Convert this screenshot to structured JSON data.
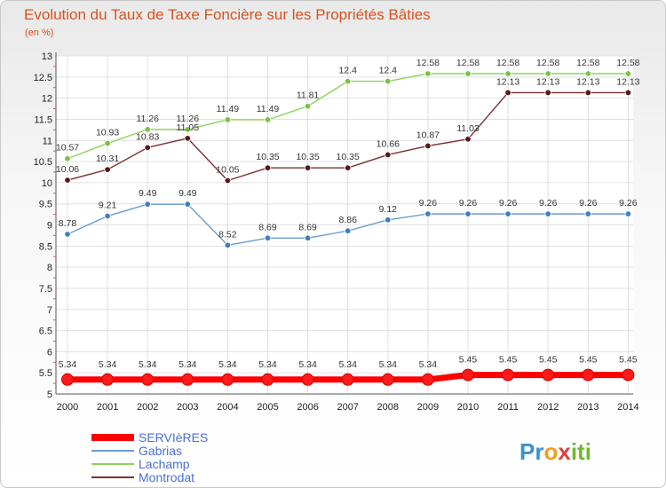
{
  "chart_data": {
    "type": "line",
    "title": "Evolution du Taux de Taxe Foncière sur les Propriétés Bâties",
    "ylabel": "(en %)",
    "xlabel": "",
    "ylim": [
      5,
      13
    ],
    "y_ticks": [
      "5",
      "5.5",
      "6",
      "6.5",
      "7",
      "7.5",
      "8",
      "8.5",
      "9",
      "9.5",
      "10",
      "10.5",
      "11",
      "11.5",
      "12",
      "12.5",
      "13"
    ],
    "categories": [
      "2000",
      "2001",
      "2002",
      "2003",
      "2004",
      "2005",
      "2006",
      "2007",
      "2008",
      "2009",
      "2010",
      "2011",
      "2012",
      "2013",
      "2014"
    ],
    "series": [
      {
        "name": "Lachamp",
        "color": "#8fd35a",
        "marker": "#7cc243",
        "values": [
          10.57,
          10.93,
          11.26,
          11.26,
          11.49,
          11.49,
          11.81,
          12.4,
          12.4,
          12.58,
          12.58,
          12.58,
          12.58,
          12.58,
          12.58
        ],
        "labels": [
          "10.57",
          "10.93",
          "11.26",
          "11.26",
          "11.49",
          "11.49",
          "11.81",
          "12.4",
          "12.4",
          "12.58",
          "12.58",
          "12.58",
          "12.58",
          "12.58",
          "12.58"
        ]
      },
      {
        "name": "Montrodat",
        "color": "#7a3030",
        "marker": "#5a1818",
        "values": [
          10.06,
          10.31,
          10.83,
          11.05,
          10.05,
          10.35,
          10.35,
          10.35,
          10.66,
          10.87,
          11.03,
          12.13,
          12.13,
          12.13,
          12.13
        ],
        "labels": [
          "10.06",
          "10.31",
          "10.83",
          "11.05",
          "10.05",
          "10.35",
          "10.35",
          "10.35",
          "10.66",
          "10.87",
          "11.03",
          "12.13",
          "12.13",
          "12.13",
          "12.13"
        ]
      },
      {
        "name": "Gabrias",
        "color": "#6a9ccf",
        "marker": "#3f7fbf",
        "values": [
          8.78,
          9.21,
          9.49,
          9.49,
          8.52,
          8.69,
          8.69,
          8.86,
          9.12,
          9.26,
          9.26,
          9.26,
          9.26,
          9.26,
          9.26
        ],
        "labels": [
          "8.78",
          "9.21",
          "9.49",
          "9.49",
          "8.52",
          "8.69",
          "8.69",
          "8.86",
          "9.12",
          "9.26",
          "9.26",
          "9.26",
          "9.26",
          "9.26",
          "9.26"
        ]
      },
      {
        "name": "SERVIèRES",
        "color": "#ff0000",
        "marker": "#ff1a1a",
        "thick": true,
        "values": [
          5.34,
          5.34,
          5.34,
          5.34,
          5.34,
          5.34,
          5.34,
          5.34,
          5.34,
          5.34,
          5.45,
          5.45,
          5.45,
          5.45,
          5.45
        ],
        "labels": [
          "5.34",
          "5.34",
          "5.34",
          "5.34",
          "5.34",
          "5.34",
          "5.34",
          "5.34",
          "5.34",
          "5.34",
          "5.45",
          "5.45",
          "5.45",
          "5.45",
          "5.45"
        ]
      }
    ],
    "legend": [
      "SERVIèRES",
      "Gabrias",
      "Lachamp",
      "Montrodat"
    ],
    "legend_colors": [
      "#ff0000",
      "#6a9ccf",
      "#8fd35a",
      "#7a3030"
    ]
  },
  "logo": {
    "parts": [
      "Pr",
      "o",
      "x",
      "iti"
    ],
    "colors": [
      "#3a8fd0",
      "#f0a020",
      "#e04040",
      "#70b830"
    ]
  }
}
